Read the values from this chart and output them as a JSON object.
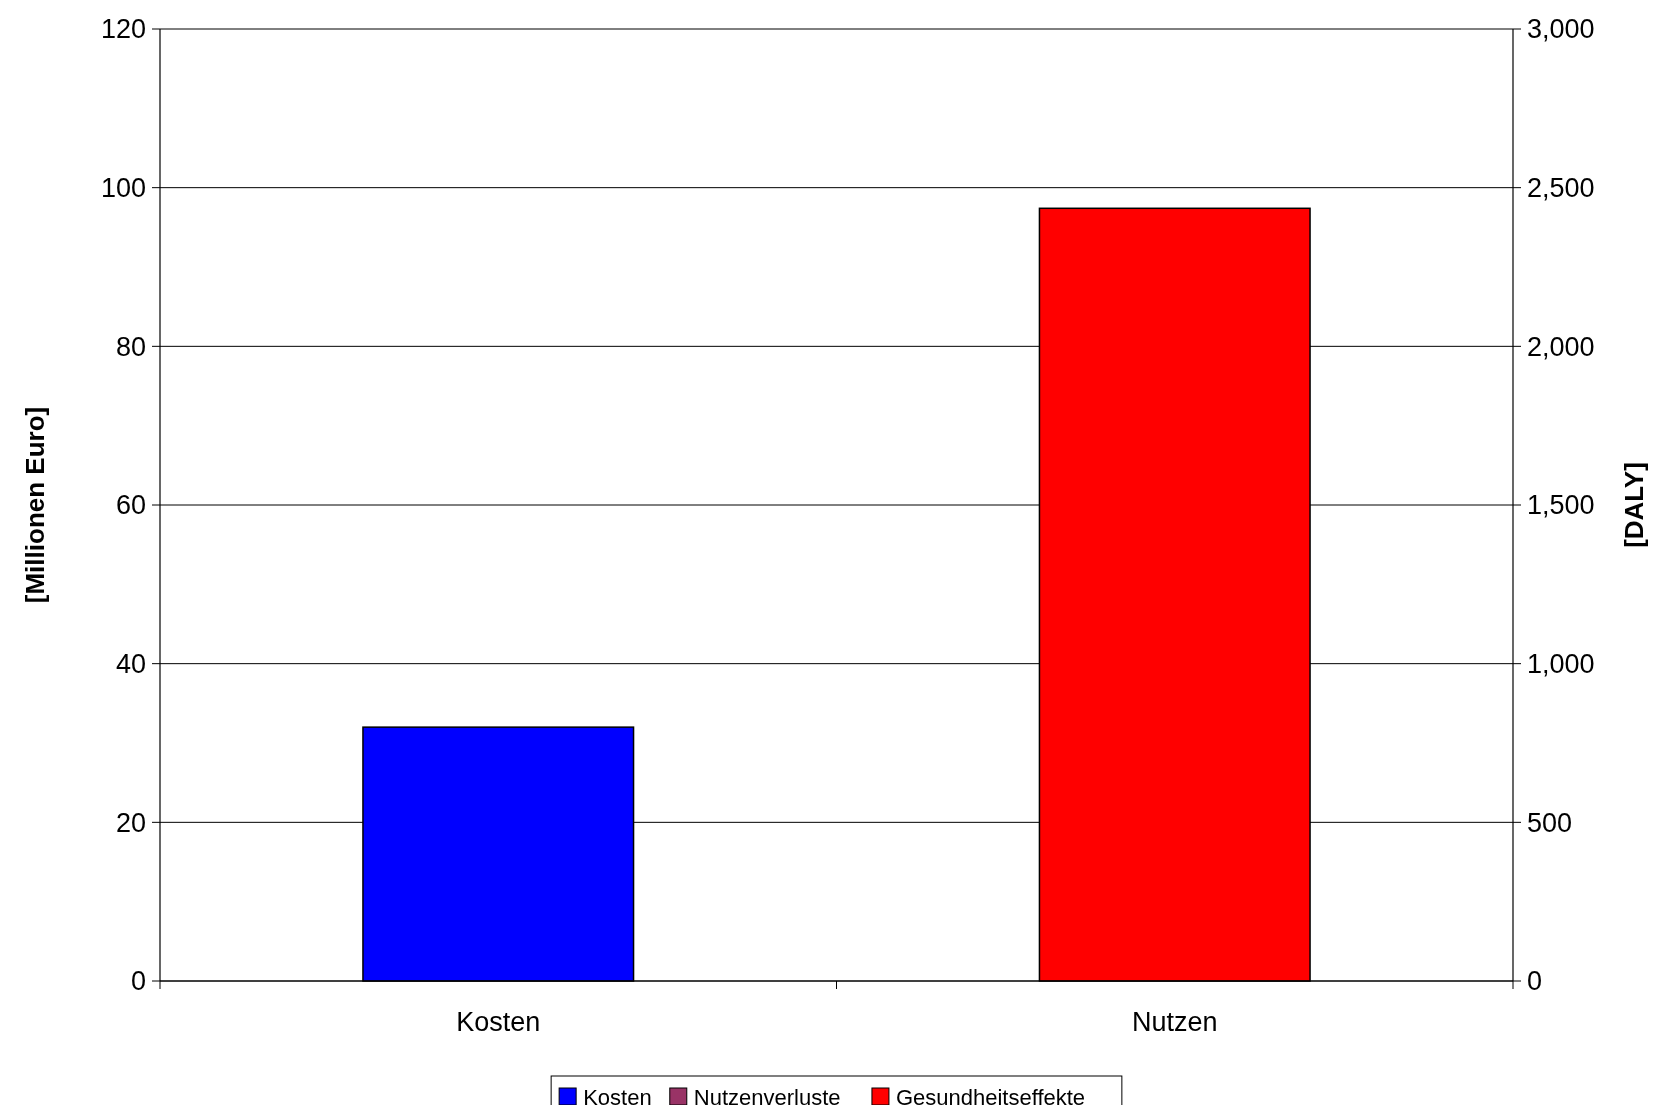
{
  "chart_data": {
    "type": "bar",
    "xlabel": null,
    "ylabel": "[Millionen Euro]",
    "y2label": "[DALY]",
    "categories": [
      "Kosten",
      "Nutzen"
    ],
    "series": [
      {
        "name": "Kosten",
        "color": "#0000ff",
        "values": [
          32,
          null
        ]
      },
      {
        "name": "Nutzenverluste",
        "color": "#993366",
        "values": [
          null,
          null
        ]
      },
      {
        "name": "Gesundheitseffekte",
        "color": "#ff0000",
        "values": [
          null,
          2435
        ],
        "axis": "y2"
      }
    ],
    "ylim": [
      0,
      120
    ],
    "yticks": [
      0,
      20,
      40,
      60,
      80,
      100,
      120
    ],
    "y2lim": [
      0,
      3000
    ],
    "y2ticks": [
      0,
      {
        "value": 500,
        "label": "500"
      },
      {
        "value": 1000,
        "label": "1,000"
      },
      {
        "value": 1500,
        "label": "1,500"
      },
      {
        "value": 2000,
        "label": "2,000"
      },
      {
        "value": 2500,
        "label": "2,500"
      },
      {
        "value": 3000,
        "label": "3,000"
      }
    ],
    "grid": "y",
    "legend": "bottom"
  }
}
